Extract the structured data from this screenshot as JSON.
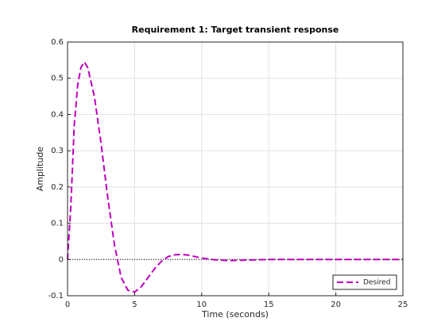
{
  "chart_data": {
    "type": "line",
    "title": "Requirement 1: Target transient response",
    "x_label": "Time (seconds)",
    "y_label": "Amplitude",
    "x": [
      0,
      0.25,
      0.5,
      0.75,
      1,
      1.25,
      1.5,
      2,
      2.5,
      3,
      3.5,
      4,
      4.5,
      5,
      5.5,
      6,
      6.5,
      7,
      7.5,
      8,
      8.5,
      9,
      9.5,
      10,
      11,
      12,
      13,
      14,
      15,
      17,
      20,
      25
    ],
    "series": [
      {
        "name": "Desired",
        "color": "#bf00bf",
        "values": [
          0,
          0.15,
          0.37,
          0.48,
          0.53,
          0.545,
          0.53,
          0.45,
          0.32,
          0.17,
          0.04,
          -0.05,
          -0.085,
          -0.09,
          -0.075,
          -0.05,
          -0.025,
          -0.005,
          0.008,
          0.013,
          0.014,
          0.012,
          0.008,
          0.004,
          -0.001,
          -0.003,
          -0.002,
          -0.001,
          0,
          0,
          0,
          0
        ]
      }
    ],
    "reference_line": 0,
    "xlim": [
      0,
      25
    ],
    "xticks": [
      0,
      5,
      10,
      15,
      20,
      25
    ],
    "ylim": [
      -0.1,
      0.6
    ],
    "yticks": [
      -0.1,
      0,
      0.1,
      0.2,
      0.3,
      0.4,
      0.5,
      0.6
    ],
    "grid": true,
    "legend_loc": "lower right"
  }
}
